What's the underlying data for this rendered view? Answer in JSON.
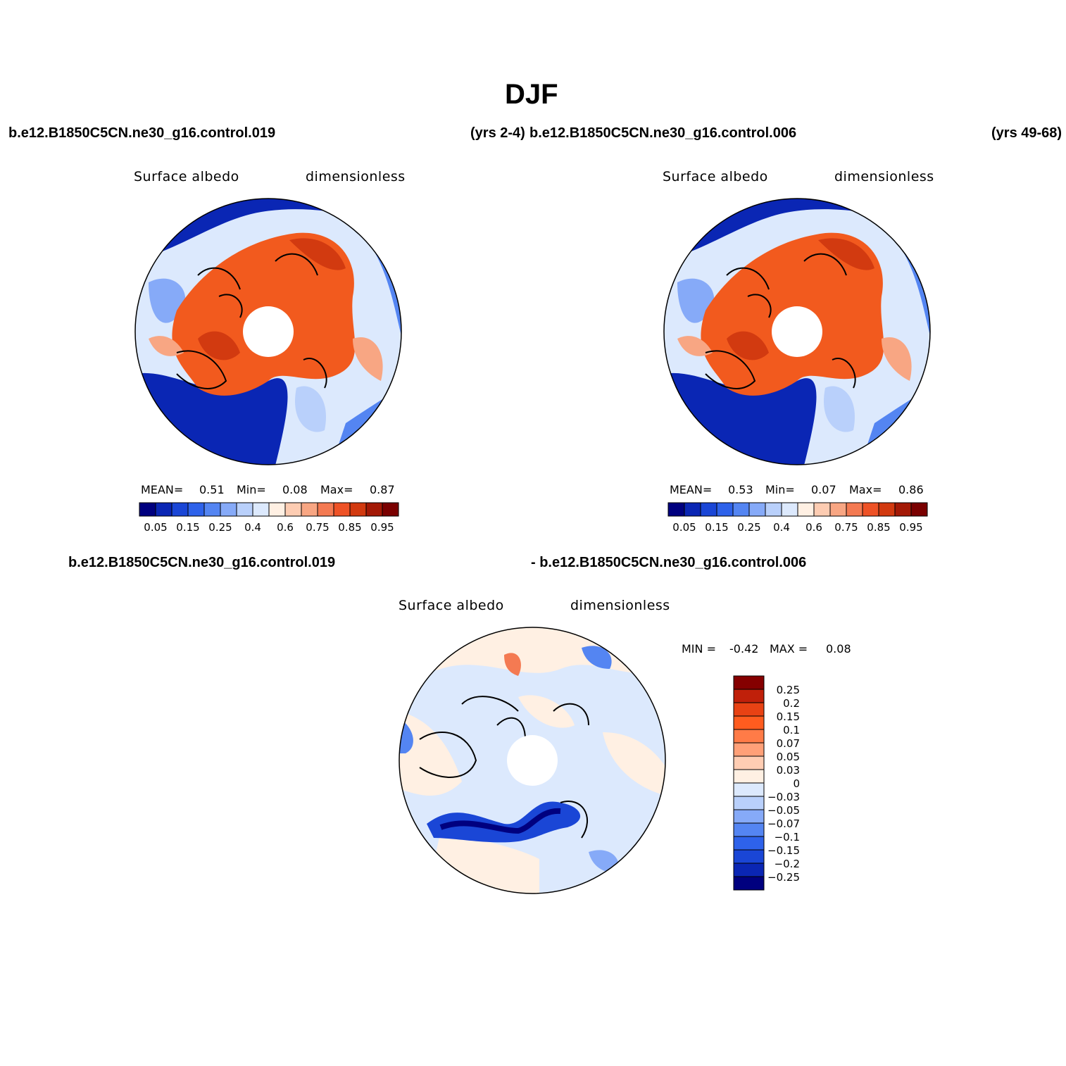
{
  "title": "DJF",
  "header": {
    "run_a": "b.e12.B1850C5CN.ne30_g16.control.019",
    "yrs_a": "(yrs 2-4)",
    "run_b": "b.e12.B1850C5CN.ne30_g16.control.006",
    "yrs_b": "(yrs 49-68)"
  },
  "diff_header": {
    "run_a": "b.e12.B1850C5CN.ne30_g16.control.019",
    "run_b": "- b.e12.B1850C5CN.ne30_g16.control.006"
  },
  "panels": [
    {
      "variable": "Surface albedo",
      "units": "dimensionless",
      "mean_label": "MEAN=",
      "mean": "0.51",
      "min_label": "Min=",
      "min": "0.08",
      "max_label": "Max=",
      "max": "0.87"
    },
    {
      "variable": "Surface albedo",
      "units": "dimensionless",
      "mean_label": "MEAN=",
      "mean": "0.53",
      "min_label": "Min=",
      "min": "0.07",
      "max_label": "Max=",
      "max": "0.86"
    }
  ],
  "diff_panel": {
    "variable": "Surface albedo",
    "units": "dimensionless",
    "min_label": "MIN =",
    "min": "-0.42",
    "max_label": "MAX =",
    "max": "0.08"
  },
  "colorbar_h": {
    "colors": [
      "#00007f",
      "#0a26b4",
      "#1a46d6",
      "#2e62ea",
      "#5485f2",
      "#86aaf8",
      "#b9d0fb",
      "#dce9fd",
      "#fff0e3",
      "#fdccb2",
      "#f8a683",
      "#f47a52",
      "#ee5226",
      "#d23a10",
      "#a31906",
      "#7a0000"
    ],
    "tick_labels": [
      "0.05",
      "0.15",
      "0.25",
      "0.4",
      "0.6",
      "0.75",
      "0.85",
      "0.95"
    ]
  },
  "colorbar_v": {
    "colors": [
      "#850000",
      "#c0200a",
      "#e84214",
      "#ff5c1f",
      "#ff7b47",
      "#ffa078",
      "#ffcdb3",
      "#fff0e3",
      "#dce9fd",
      "#b9d0fb",
      "#86aaf8",
      "#5485f2",
      "#2e62ea",
      "#1a46d6",
      "#0a26b4",
      "#00007f"
    ],
    "tick_labels": [
      "0.25",
      "0.2",
      "0.15",
      "0.1",
      "0.07",
      "0.05",
      "0.03",
      "0",
      "-0.03",
      "-0.05",
      "-0.07",
      "-0.1",
      "-0.15",
      "-0.2",
      "-0.25"
    ]
  },
  "colors": {
    "ocean_blue": "#0a2fbf",
    "land_orange": "#f25a1e",
    "pole_hole": "#ffffff"
  }
}
